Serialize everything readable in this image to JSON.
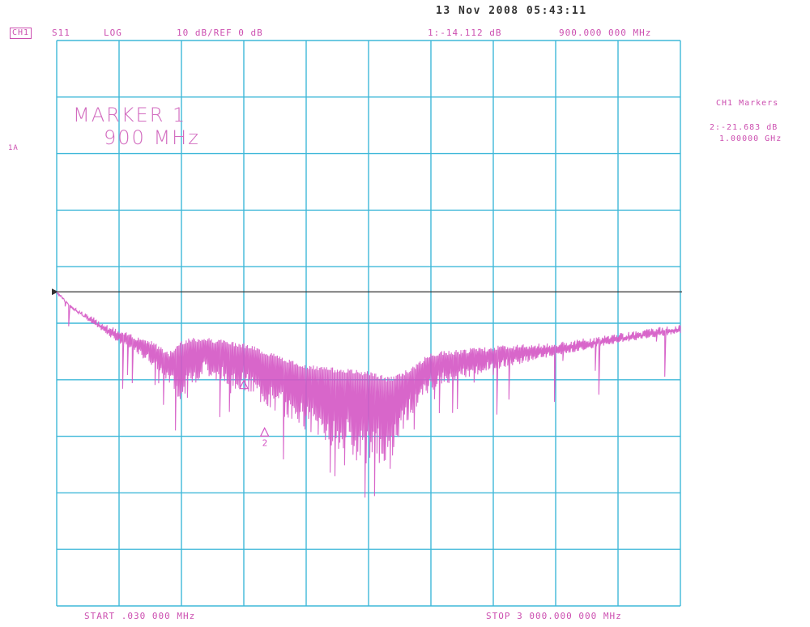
{
  "header": {
    "datetime": "13 Nov 2008  05:43:11",
    "channel": "CH1",
    "parameter": "S11",
    "format": "LOG",
    "scale_ref": "10 dB/REF 0 dB",
    "marker_value": "1:-14.112 dB",
    "marker_freq": "900.000 000 MHz"
  },
  "side_panel": {
    "title": "CH1 Markers",
    "marker2_value": "2:-21.683 dB",
    "marker2_freq": "1.00000 GHz"
  },
  "footer": {
    "start": "START  .030 000 MHz",
    "stop": "STOP 3 000.000 000 MHz"
  },
  "annotation": {
    "line1": "MARKER 1",
    "line2": "900 MHz"
  },
  "y_ref_label": "1A",
  "colors": {
    "trace": "#d455c4",
    "grid": "#3fb8d9",
    "text": "#cc4fb0",
    "reference_line": "#333333"
  },
  "chart_data": {
    "type": "line",
    "title": "",
    "xlabel": "",
    "ylabel": "",
    "x_unit": "MHz",
    "y_unit": "dB",
    "xlim": [
      0.03,
      3000
    ],
    "ylim": [
      -50,
      40
    ],
    "reference_level": 0,
    "grid": true,
    "divisions": {
      "x": 10,
      "y": 10
    },
    "series": [
      {
        "x": [
          0.03,
          75,
          150,
          300,
          450,
          540,
          600,
          700,
          900,
          1200,
          1500,
          1600,
          1700,
          1800,
          2100,
          2400,
          2700,
          3000
        ],
        "envelope_top": [
          0,
          -2.5,
          -4,
          -6.5,
          -8,
          -10,
          -8,
          -7.5,
          -8.5,
          -12,
          -13,
          -14,
          -12.5,
          -10,
          -9,
          -8.5,
          -7,
          -5.5
        ],
        "envelope_bottom": [
          0,
          -2.5,
          -4.5,
          -8,
          -11,
          -14,
          -17,
          -12.5,
          -15,
          -21,
          -26,
          -25,
          -19,
          -15,
          -12,
          -10,
          -8,
          -6.5
        ]
      }
    ],
    "markers": [
      {
        "id": "1",
        "x": 900,
        "y": -14.112
      },
      {
        "id": "2",
        "x": 1000,
        "y": -21.683,
        "label": "2"
      }
    ]
  }
}
